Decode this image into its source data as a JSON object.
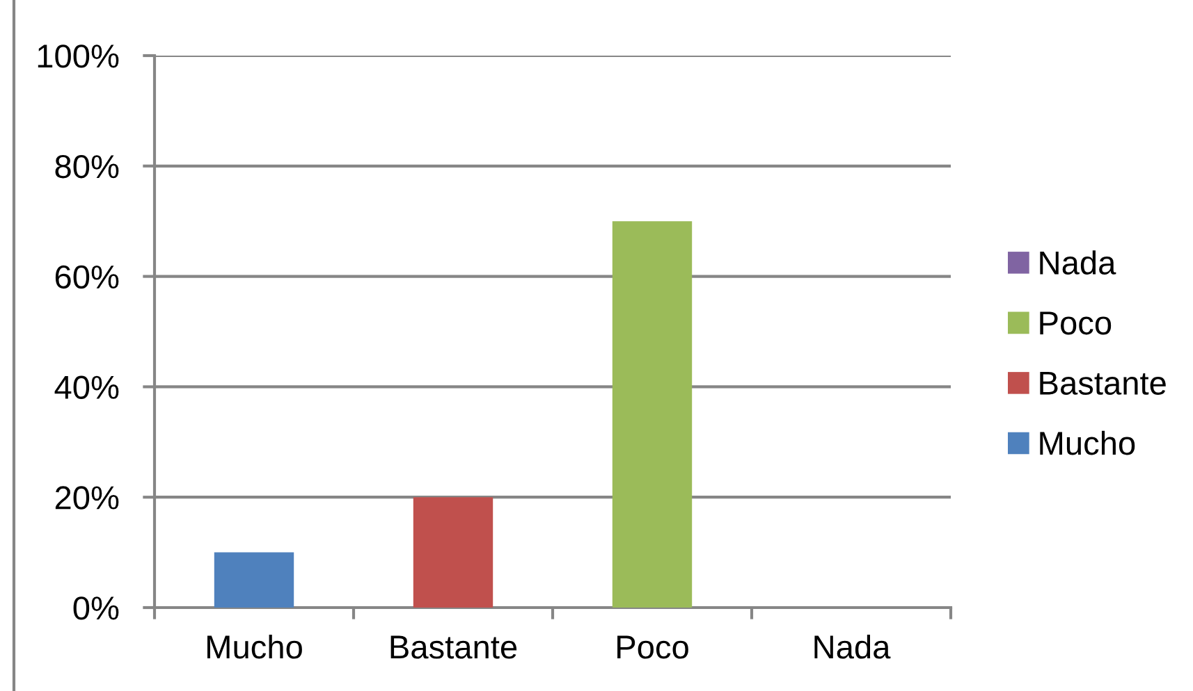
{
  "chart_data": {
    "type": "bar",
    "stacked": true,
    "categories": [
      "Mucho",
      "Bastante",
      "Poco",
      "Nada"
    ],
    "series": [
      {
        "name": "Mucho",
        "color": "#4f81bd",
        "values": [
          10,
          null,
          null,
          null
        ]
      },
      {
        "name": "Bastante",
        "color": "#c0504d",
        "values": [
          null,
          20,
          null,
          null
        ]
      },
      {
        "name": "Poco",
        "color": "#9bbb59",
        "values": [
          null,
          null,
          70,
          null
        ]
      },
      {
        "name": "Nada",
        "color": "#8064a2",
        "values": [
          null,
          null,
          null,
          0
        ]
      }
    ],
    "ylim": [
      0,
      100
    ],
    "yticks": [
      {
        "value": 0,
        "label": "0%"
      },
      {
        "value": 20,
        "label": "20%"
      },
      {
        "value": 40,
        "label": "40%"
      },
      {
        "value": 60,
        "label": "60%"
      },
      {
        "value": 80,
        "label": "80%"
      },
      {
        "value": 100,
        "label": "100%"
      }
    ],
    "grid": "y",
    "legend": "right"
  }
}
